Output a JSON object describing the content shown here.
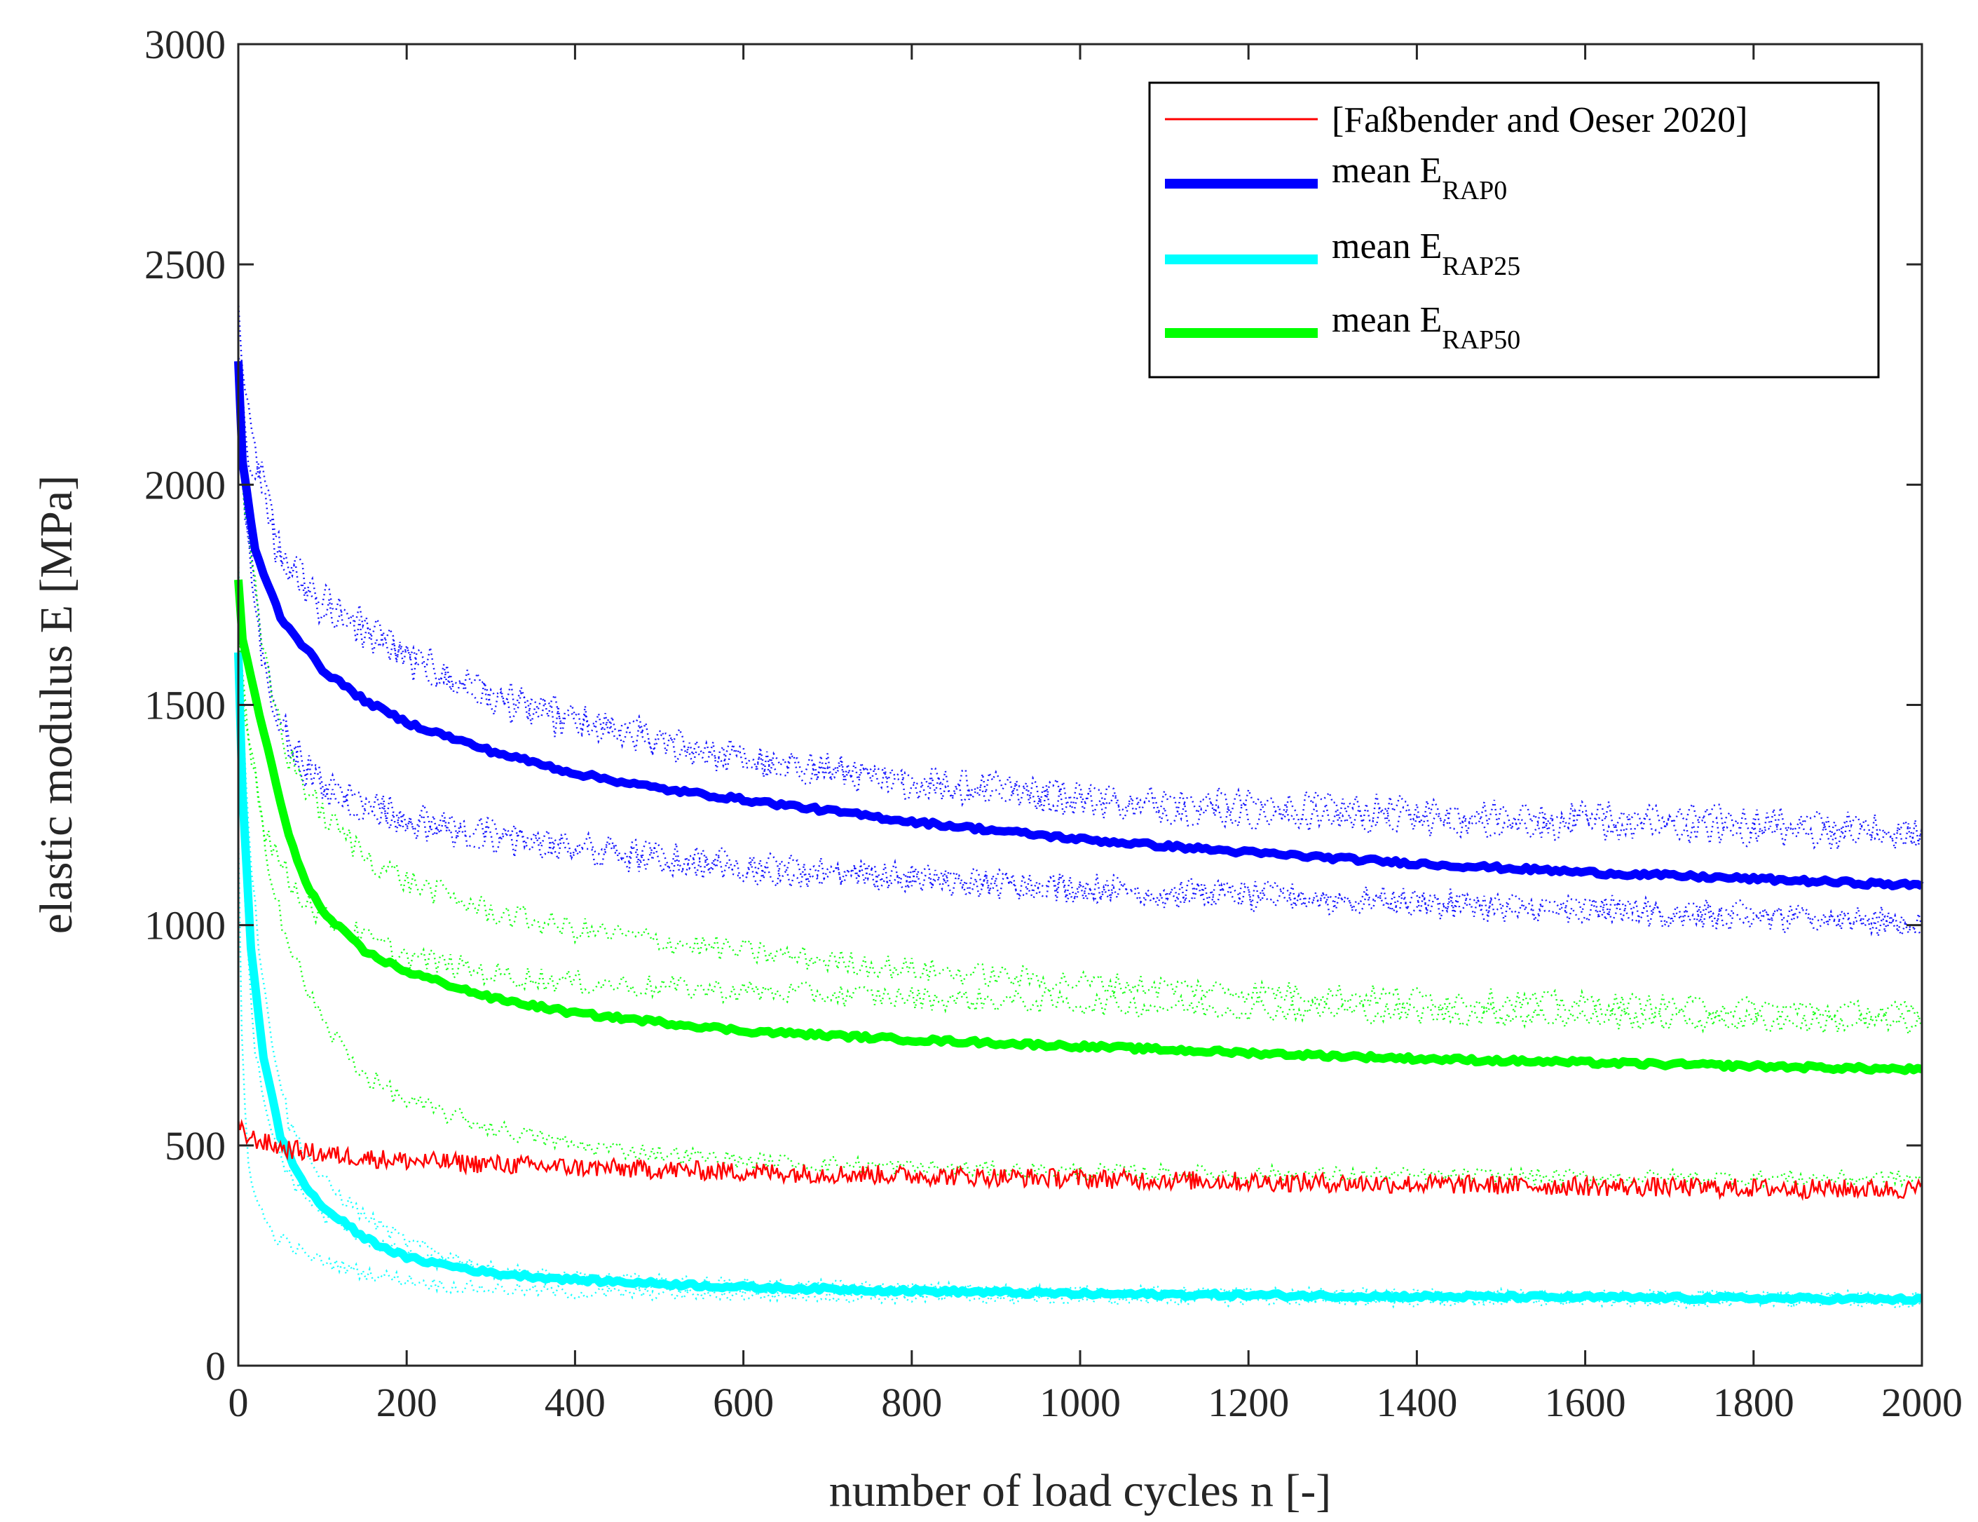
{
  "chart_data": {
    "type": "line",
    "title": "",
    "xlabel": "number of load cycles n [-]",
    "ylabel": "elastic modulus E [MPa]",
    "xlim": [
      0,
      2000
    ],
    "ylim": [
      0,
      3000
    ],
    "xticks": [
      0,
      200,
      400,
      600,
      800,
      1000,
      1200,
      1400,
      1600,
      1800,
      2000
    ],
    "yticks": [
      0,
      500,
      1000,
      1500,
      2000,
      2500,
      3000
    ],
    "grid": false,
    "legend_position": "top-right",
    "legend": [
      {
        "text": "[Faßbender and Oeser 2020]",
        "sub": "",
        "color": "#ff0000",
        "style": "thin"
      },
      {
        "text": "mean E",
        "sub": "RAP0",
        "color": "#0000ff",
        "style": "thick"
      },
      {
        "text": "mean E",
        "sub": "RAP25",
        "color": "#00ffff",
        "style": "thick"
      },
      {
        "text": "mean E",
        "sub": "RAP50",
        "color": "#00ff00",
        "style": "thick"
      }
    ],
    "series": [
      {
        "name": "[Faßbender and Oeser 2020]",
        "color": "#ff0000",
        "kind": "noisy",
        "x": [
          0,
          10,
          50,
          100,
          200,
          400,
          600,
          800,
          1000,
          1200,
          1400,
          1600,
          1800,
          2000
        ],
        "y": [
          540,
          520,
          495,
          480,
          465,
          450,
          440,
          432,
          425,
          418,
          412,
          407,
          403,
          400
        ]
      },
      {
        "name": "mean E RAP0",
        "color": "#0000ff",
        "kind": "mean",
        "x": [
          0,
          5,
          20,
          50,
          100,
          150,
          200,
          300,
          400,
          500,
          600,
          800,
          1000,
          1200,
          1400,
          1600,
          1800,
          2000
        ],
        "y": [
          2280,
          2050,
          1850,
          1700,
          1580,
          1510,
          1460,
          1395,
          1345,
          1310,
          1285,
          1235,
          1195,
          1165,
          1140,
          1120,
          1105,
          1090
        ]
      },
      {
        "name": "mean E RAP25",
        "color": "#00ffff",
        "kind": "mean",
        "x": [
          0,
          5,
          15,
          30,
          50,
          75,
          100,
          150,
          200,
          300,
          400,
          600,
          800,
          1000,
          1200,
          1400,
          1600,
          1800,
          2000
        ],
        "y": [
          1620,
          1300,
          950,
          700,
          520,
          420,
          360,
          290,
          245,
          210,
          195,
          178,
          170,
          163,
          160,
          157,
          155,
          153,
          150
        ]
      },
      {
        "name": "mean E RAP50",
        "color": "#00ff00",
        "kind": "mean",
        "x": [
          0,
          5,
          20,
          40,
          60,
          80,
          100,
          150,
          200,
          300,
          400,
          600,
          800,
          1000,
          1200,
          1400,
          1600,
          1800,
          2000
        ],
        "y": [
          1780,
          1650,
          1520,
          1360,
          1200,
          1100,
          1030,
          940,
          895,
          835,
          800,
          760,
          740,
          725,
          710,
          697,
          688,
          680,
          672
        ]
      },
      {
        "name": "RAP0 sample 1",
        "color": "#0000ff",
        "kind": "sample",
        "x": [
          0,
          10,
          50,
          100,
          200,
          300,
          400,
          600,
          800,
          1000,
          1200,
          1400,
          1600,
          1800,
          2000
        ],
        "y": [
          2400,
          2150,
          1850,
          1740,
          1620,
          1530,
          1470,
          1380,
          1330,
          1295,
          1275,
          1260,
          1250,
          1240,
          1215
        ]
      },
      {
        "name": "RAP0 sample 2",
        "color": "#0000ff",
        "kind": "sample",
        "x": [
          0,
          10,
          50,
          100,
          200,
          300,
          400,
          600,
          800,
          1000,
          1200,
          1400,
          1600,
          1800,
          2000
        ],
        "y": [
          2350,
          2100,
          1820,
          1720,
          1600,
          1510,
          1450,
          1370,
          1320,
          1280,
          1250,
          1235,
          1225,
          1210,
          1200
        ]
      },
      {
        "name": "RAP0 sample 3",
        "color": "#0000ff",
        "kind": "sample",
        "x": [
          0,
          10,
          30,
          60,
          100,
          200,
          300,
          400,
          600,
          800,
          1000,
          1200,
          1400,
          1600,
          1800,
          2000
        ],
        "y": [
          2200,
          1900,
          1600,
          1420,
          1320,
          1250,
          1210,
          1180,
          1140,
          1110,
          1090,
          1070,
          1055,
          1040,
          1025,
          1010
        ]
      },
      {
        "name": "RAP0 sample 4",
        "color": "#0000ff",
        "kind": "sample",
        "x": [
          0,
          10,
          30,
          60,
          100,
          200,
          300,
          400,
          600,
          800,
          1000,
          1200,
          1400,
          1600,
          1800,
          2000
        ],
        "y": [
          2150,
          1880,
          1580,
          1400,
          1300,
          1230,
          1195,
          1165,
          1125,
          1100,
          1080,
          1060,
          1045,
          1030,
          1015,
          1000
        ]
      },
      {
        "name": "RAP25 sample 1",
        "color": "#00ffff",
        "kind": "sample",
        "x": [
          0,
          5,
          15,
          30,
          60,
          100,
          150,
          200,
          300,
          400,
          600,
          800,
          1000,
          1200,
          1400,
          1600,
          1800,
          2000
        ],
        "y": [
          1800,
          1500,
          1150,
          850,
          550,
          420,
          340,
          280,
          220,
          200,
          185,
          175,
          168,
          164,
          161,
          159,
          157,
          155
        ]
      },
      {
        "name": "RAP25 sample 2",
        "color": "#00ffff",
        "kind": "sample",
        "x": [
          0,
          5,
          15,
          30,
          60,
          100,
          150,
          200,
          300,
          400,
          600,
          800,
          1000,
          1200,
          1400,
          1600,
          1800,
          2000
        ],
        "y": [
          1500,
          1150,
          800,
          580,
          430,
          340,
          290,
          250,
          210,
          190,
          175,
          167,
          161,
          158,
          155,
          153,
          152,
          150
        ]
      },
      {
        "name": "RAP25 sample 3",
        "color": "#00ffff",
        "kind": "sample",
        "x": [
          0,
          3,
          10,
          20,
          40,
          80,
          150,
          250,
          400,
          600,
          800,
          1000,
          1200,
          1400,
          1600,
          1800,
          2000
        ],
        "y": [
          1200,
          800,
          500,
          380,
          300,
          250,
          210,
          180,
          165,
          160,
          155,
          152,
          150,
          148,
          147,
          146,
          145
        ]
      },
      {
        "name": "RAP50 sample 1",
        "color": "#00ff00",
        "kind": "sample",
        "x": [
          0,
          10,
          30,
          60,
          100,
          150,
          200,
          300,
          400,
          600,
          800,
          1000,
          1200,
          1400,
          1600,
          1800,
          2000
        ],
        "y": [
          2150,
          1900,
          1600,
          1380,
          1250,
          1160,
          1100,
          1030,
          990,
          940,
          900,
          870,
          850,
          835,
          822,
          812,
          800
        ]
      },
      {
        "name": "RAP50 sample 2",
        "color": "#00ff00",
        "kind": "sample",
        "x": [
          0,
          10,
          30,
          60,
          100,
          150,
          200,
          300,
          400,
          600,
          800,
          1000,
          1200,
          1400,
          1600,
          1800,
          2000
        ],
        "y": [
          1700,
          1450,
          1230,
          1100,
          1020,
          970,
          930,
          890,
          870,
          850,
          835,
          822,
          810,
          800,
          790,
          782,
          775
        ]
      },
      {
        "name": "RAP50 sample 3",
        "color": "#00ff00",
        "kind": "sample",
        "x": [
          0,
          10,
          30,
          60,
          100,
          150,
          200,
          300,
          400,
          600,
          800,
          1000,
          1200,
          1400,
          1600,
          1800,
          2000
        ],
        "y": [
          1650,
          1450,
          1200,
          950,
          780,
          660,
          600,
          540,
          500,
          465,
          450,
          440,
          435,
          430,
          428,
          426,
          425
        ]
      }
    ]
  }
}
